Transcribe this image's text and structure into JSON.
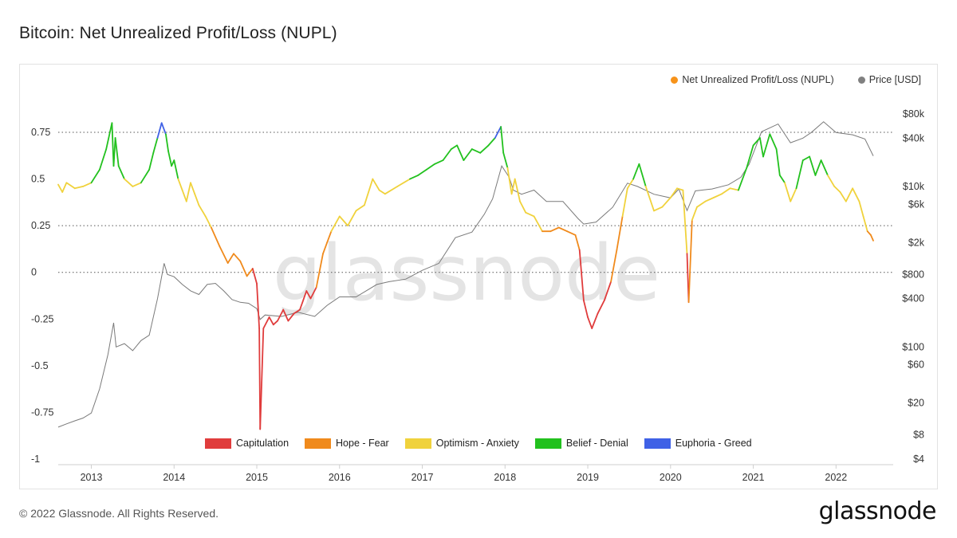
{
  "title": "Bitcoin: Net Unrealized Profit/Loss (NUPL)",
  "footer": "© 2022 Glassnode. All Rights Reserved.",
  "logo": "glassnode",
  "watermark": "glassnode",
  "legend_top": [
    {
      "label": "Net Unrealized Profit/Loss (NUPL)",
      "color": "#f7931a"
    },
    {
      "label": "Price [USD]",
      "color": "#808080"
    }
  ],
  "legend_bottom": [
    {
      "label": "Capitulation",
      "color": "#e03c3c"
    },
    {
      "label": "Hope - Fear",
      "color": "#f08a1c"
    },
    {
      "label": "Optimism - Anxiety",
      "color": "#f0d23c"
    },
    {
      "label": "Belief - Denial",
      "color": "#22c11e"
    },
    {
      "label": "Euphoria - Greed",
      "color": "#3f61e6"
    }
  ],
  "chart_data": {
    "type": "line",
    "title": "Bitcoin: Net Unrealized Profit/Loss (NUPL)",
    "x_ticks": [
      "2013",
      "2014",
      "2015",
      "2016",
      "2017",
      "2018",
      "2019",
      "2020",
      "2021",
      "2022"
    ],
    "y_left": {
      "ticks": [
        "0.75",
        "0.5",
        "0.25",
        "0",
        "-0.25",
        "-0.5",
        "-0.75",
        "-1"
      ],
      "values": [
        0.75,
        0.5,
        0.25,
        0,
        -0.25,
        -0.5,
        -0.75,
        -1
      ],
      "range": [
        -1,
        1
      ]
    },
    "y_right": {
      "ticks": [
        "$80k",
        "$40k",
        "$10k",
        "$6k",
        "$2k",
        "$800",
        "$400",
        "$100",
        "$60",
        "$20",
        "$8",
        "$4"
      ],
      "values": [
        80000,
        40000,
        10000,
        6000,
        2000,
        800,
        400,
        100,
        60,
        20,
        8,
        4
      ],
      "scale": "log"
    },
    "grid_lines_at": [
      0.75,
      0.25,
      0
    ],
    "zones": [
      {
        "name": "Capitulation",
        "range": [
          -1,
          0
        ],
        "color": "#e03c3c"
      },
      {
        "name": "Hope - Fear",
        "range": [
          0,
          0.25
        ],
        "color": "#f08a1c"
      },
      {
        "name": "Optimism - Anxiety",
        "range": [
          0.25,
          0.5
        ],
        "color": "#f0d23c"
      },
      {
        "name": "Belief - Denial",
        "range": [
          0.5,
          0.75
        ],
        "color": "#22c11e"
      },
      {
        "name": "Euphoria - Greed",
        "range": [
          0.75,
          1
        ],
        "color": "#3f61e6"
      }
    ],
    "series": [
      {
        "name": "Net Unrealized Profit/Loss (NUPL)",
        "axis": "left",
        "x": [
          2012.6,
          2012.65,
          2012.7,
          2012.8,
          2012.9,
          2013.0,
          2013.1,
          2013.18,
          2013.25,
          2013.27,
          2013.29,
          2013.33,
          2013.4,
          2013.5,
          2013.6,
          2013.7,
          2013.75,
          2013.8,
          2013.85,
          2013.9,
          2013.93,
          2013.97,
          2014.0,
          2014.05,
          2014.1,
          2014.15,
          2014.2,
          2014.25,
          2014.3,
          2014.38,
          2014.45,
          2014.55,
          2014.65,
          2014.72,
          2014.8,
          2014.88,
          2014.95,
          2015.0,
          2015.03,
          2015.04,
          2015.08,
          2015.15,
          2015.2,
          2015.25,
          2015.32,
          2015.38,
          2015.45,
          2015.52,
          2015.6,
          2015.65,
          2015.72,
          2015.8,
          2015.85,
          2015.9,
          2016.0,
          2016.1,
          2016.2,
          2016.3,
          2016.4,
          2016.48,
          2016.55,
          2016.7,
          2016.85,
          2016.95,
          2017.05,
          2017.15,
          2017.25,
          2017.35,
          2017.42,
          2017.5,
          2017.6,
          2017.7,
          2017.8,
          2017.88,
          2017.95,
          2017.98,
          2018.03,
          2018.08,
          2018.12,
          2018.18,
          2018.25,
          2018.35,
          2018.45,
          2018.55,
          2018.65,
          2018.75,
          2018.85,
          2018.9,
          2018.95,
          2019.0,
          2019.05,
          2019.12,
          2019.2,
          2019.28,
          2019.35,
          2019.42,
          2019.48,
          2019.55,
          2019.62,
          2019.7,
          2019.8,
          2019.9,
          2020.0,
          2020.08,
          2020.15,
          2020.2,
          2020.22,
          2020.26,
          2020.32,
          2020.42,
          2020.52,
          2020.62,
          2020.72,
          2020.82,
          2020.92,
          2021.0,
          2021.08,
          2021.12,
          2021.2,
          2021.28,
          2021.32,
          2021.38,
          2021.45,
          2021.52,
          2021.6,
          2021.68,
          2021.75,
          2021.82,
          2021.9,
          2021.98,
          2022.05,
          2022.12,
          2022.2,
          2022.28,
          2022.33,
          2022.38,
          2022.42,
          2022.45
        ],
        "values": [
          0.47,
          0.43,
          0.48,
          0.45,
          0.46,
          0.48,
          0.55,
          0.66,
          0.8,
          0.57,
          0.72,
          0.57,
          0.5,
          0.46,
          0.48,
          0.55,
          0.64,
          0.72,
          0.8,
          0.74,
          0.65,
          0.57,
          0.6,
          0.5,
          0.44,
          0.38,
          0.48,
          0.42,
          0.36,
          0.3,
          0.24,
          0.14,
          0.05,
          0.1,
          0.06,
          -0.02,
          0.02,
          -0.06,
          -0.3,
          -0.84,
          -0.3,
          -0.24,
          -0.28,
          -0.26,
          -0.2,
          -0.26,
          -0.22,
          -0.2,
          -0.1,
          -0.14,
          -0.08,
          0.1,
          0.16,
          0.22,
          0.3,
          0.25,
          0.33,
          0.36,
          0.5,
          0.44,
          0.42,
          0.46,
          0.5,
          0.52,
          0.55,
          0.58,
          0.6,
          0.66,
          0.68,
          0.6,
          0.66,
          0.64,
          0.68,
          0.72,
          0.78,
          0.64,
          0.56,
          0.42,
          0.5,
          0.38,
          0.32,
          0.3,
          0.22,
          0.22,
          0.24,
          0.22,
          0.2,
          0.12,
          -0.15,
          -0.24,
          -0.3,
          -0.22,
          -0.15,
          -0.05,
          0.12,
          0.3,
          0.45,
          0.5,
          0.58,
          0.46,
          0.33,
          0.35,
          0.4,
          0.45,
          0.44,
          0.1,
          -0.16,
          0.28,
          0.35,
          0.38,
          0.4,
          0.42,
          0.45,
          0.44,
          0.56,
          0.68,
          0.72,
          0.62,
          0.74,
          0.66,
          0.52,
          0.48,
          0.38,
          0.45,
          0.6,
          0.62,
          0.52,
          0.6,
          0.52,
          0.46,
          0.43,
          0.38,
          0.45,
          0.38,
          0.3,
          0.22,
          0.2,
          0.17
        ]
      },
      {
        "name": "Price [USD]",
        "axis": "right",
        "x": [
          2012.6,
          2012.7,
          2012.8,
          2012.9,
          2013.0,
          2013.1,
          2013.2,
          2013.27,
          2013.3,
          2013.4,
          2013.5,
          2013.6,
          2013.7,
          2013.8,
          2013.88,
          2013.92,
          2014.0,
          2014.1,
          2014.2,
          2014.3,
          2014.4,
          2014.5,
          2014.6,
          2014.7,
          2014.8,
          2014.9,
          2015.0,
          2015.04,
          2015.1,
          2015.3,
          2015.5,
          2015.7,
          2015.85,
          2016.0,
          2016.2,
          2016.45,
          2016.6,
          2016.8,
          2017.0,
          2017.2,
          2017.4,
          2017.6,
          2017.75,
          2017.85,
          2017.96,
          2018.05,
          2018.1,
          2018.2,
          2018.35,
          2018.5,
          2018.7,
          2018.88,
          2018.95,
          2019.1,
          2019.3,
          2019.48,
          2019.6,
          2019.8,
          2020.0,
          2020.1,
          2020.2,
          2020.3,
          2020.5,
          2020.7,
          2020.85,
          2020.95,
          2021.1,
          2021.3,
          2021.45,
          2021.6,
          2021.7,
          2021.85,
          2022.0,
          2022.2,
          2022.35,
          2022.45
        ],
        "values": [
          10,
          11,
          12,
          13,
          15,
          30,
          80,
          200,
          100,
          110,
          90,
          120,
          140,
          400,
          1100,
          800,
          750,
          600,
          500,
          450,
          600,
          620,
          500,
          390,
          360,
          350,
          300,
          220,
          250,
          240,
          270,
          240,
          330,
          420,
          420,
          600,
          650,
          700,
          900,
          1100,
          2300,
          2700,
          4500,
          7000,
          18000,
          13000,
          9000,
          8000,
          9000,
          6500,
          6500,
          4000,
          3400,
          3600,
          5500,
          11000,
          10000,
          8000,
          7200,
          9300,
          5000,
          8800,
          9300,
          10500,
          13000,
          19000,
          48000,
          60000,
          35000,
          40000,
          47000,
          64000,
          47000,
          44000,
          39000,
          24000
        ]
      }
    ]
  }
}
